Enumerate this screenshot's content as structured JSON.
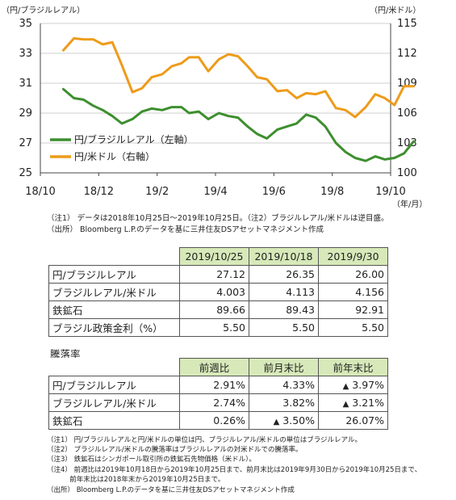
{
  "chart_data": {
    "type": "line",
    "left_axis_unit": "（円/ブラジルレアル）",
    "right_axis_unit": "（円/米ドル）",
    "x_unit": "（年/月）",
    "x_ticks": [
      "18/10",
      "18/12",
      "19/2",
      "19/4",
      "19/6",
      "19/8",
      "19/10"
    ],
    "y_left_ticks": [
      "25",
      "27",
      "29",
      "31",
      "33",
      "35"
    ],
    "y_right_ticks": [
      "100",
      "103",
      "106",
      "109",
      "112",
      "115"
    ],
    "y_left_range": [
      25,
      35
    ],
    "y_right_range": [
      100,
      115
    ],
    "series": [
      {
        "name": "円/ブラジルレアル（左軸）",
        "axis": "left",
        "color": "#3d8f2e",
        "x": [
          "2018-10-25",
          "2018-11-05",
          "2018-11-15",
          "2018-11-25",
          "2018-12-05",
          "2018-12-15",
          "2018-12-25",
          "2019-01-05",
          "2019-01-15",
          "2019-01-25",
          "2019-02-05",
          "2019-02-15",
          "2019-02-25",
          "2019-03-05",
          "2019-03-15",
          "2019-03-25",
          "2019-04-05",
          "2019-04-15",
          "2019-04-25",
          "2019-05-05",
          "2019-05-15",
          "2019-05-25",
          "2019-06-05",
          "2019-06-15",
          "2019-06-25",
          "2019-07-05",
          "2019-07-15",
          "2019-07-25",
          "2019-08-05",
          "2019-08-15",
          "2019-08-25",
          "2019-09-05",
          "2019-09-15",
          "2019-09-25",
          "2019-10-05",
          "2019-10-15",
          "2019-10-25"
        ],
        "y": [
          30.6,
          30.0,
          29.9,
          29.5,
          29.2,
          28.8,
          28.3,
          28.6,
          29.1,
          29.3,
          29.2,
          29.4,
          29.4,
          29.0,
          29.1,
          28.6,
          29.0,
          28.8,
          28.7,
          28.1,
          27.6,
          27.3,
          27.9,
          28.1,
          28.3,
          28.9,
          28.7,
          28.1,
          27.0,
          26.4,
          26.0,
          25.8,
          26.1,
          25.9,
          26.0,
          26.3,
          27.1
        ]
      },
      {
        "name": "円/米ドル（右軸）",
        "axis": "right",
        "color": "#ee9b1a",
        "x": [
          "2018-10-25",
          "2018-11-05",
          "2018-11-15",
          "2018-11-25",
          "2018-12-05",
          "2018-12-15",
          "2018-12-25",
          "2019-01-05",
          "2019-01-15",
          "2019-01-25",
          "2019-02-05",
          "2019-02-15",
          "2019-02-25",
          "2019-03-05",
          "2019-03-15",
          "2019-03-25",
          "2019-04-05",
          "2019-04-15",
          "2019-04-25",
          "2019-05-05",
          "2019-05-15",
          "2019-05-25",
          "2019-06-05",
          "2019-06-15",
          "2019-06-25",
          "2019-07-05",
          "2019-07-15",
          "2019-07-25",
          "2019-08-05",
          "2019-08-15",
          "2019-08-25",
          "2019-09-05",
          "2019-09-15",
          "2019-09-25",
          "2019-10-05",
          "2019-10-15",
          "2019-10-25"
        ],
        "y": [
          112.3,
          113.5,
          113.4,
          113.4,
          112.9,
          113.1,
          110.8,
          108.1,
          108.5,
          109.6,
          109.9,
          110.7,
          111.0,
          111.6,
          111.6,
          110.2,
          111.4,
          111.9,
          111.7,
          110.7,
          109.6,
          109.4,
          108.2,
          108.3,
          107.5,
          108.0,
          107.9,
          108.2,
          106.5,
          106.3,
          105.6,
          106.6,
          107.9,
          107.5,
          106.8,
          108.7,
          108.7
        ]
      }
    ]
  },
  "notes_chart": [
    "（注1） データは2018年10月25日～2019年10月25日。（注2）ブラジルレアル/米ドルは逆目盛。",
    "（出所） Bloomberg L.P.のデータを基に三井住友DSアセットマネジメント作成"
  ],
  "table1": {
    "headers": [
      "2019/10/25",
      "2019/10/18",
      "2019/9/30"
    ],
    "rows": [
      {
        "label": "円/ブラジルレアル",
        "v1": "27.12",
        "v2": "26.35",
        "v3": "26.00"
      },
      {
        "label": "ブラジルレアル/米ドル",
        "v1": "4.003",
        "v2": "4.113",
        "v3": "4.156"
      },
      {
        "label": "鉄鉱石",
        "v1": "89.66",
        "v2": "89.43",
        "v3": "92.91"
      },
      {
        "label": "ブラジル政策金利（%）",
        "v1": "5.50",
        "v2": "5.50",
        "v3": "5.50"
      }
    ]
  },
  "section_label": "騰落率",
  "table2": {
    "headers": [
      "前週比",
      "前月末比",
      "前年末比"
    ],
    "rows": [
      {
        "label": "円/ブラジルレアル",
        "v1": "2.91%",
        "v1_mark": "",
        "v2": "4.33%",
        "v2_mark": "",
        "v3": "3.97%",
        "v3_mark": "▲"
      },
      {
        "label": "ブラジルレアル/米ドル",
        "v1": "2.74%",
        "v1_mark": "",
        "v2": "3.82%",
        "v2_mark": "",
        "v3": "3.21%",
        "v3_mark": "▲"
      },
      {
        "label": "鉄鉱石",
        "v1": "0.26%",
        "v1_mark": "",
        "v2": "3.50%",
        "v2_mark": "▲",
        "v3": "26.07%",
        "v3_mark": ""
      }
    ]
  },
  "notes_bottom": [
    "（注1） 円/ブラジルレアルと円/米ドルの単位は円、ブラジルレアル/米ドルの単位はブラジルレアル。",
    "（注2） ブラジルレアル/米ドルの騰落率はブラジルレアルの対米ドルでの騰落率。",
    "（注3） 鉄鉱石はシンガポール取引所の鉄鉱石先物価格（米ドル）。",
    "（注4） 前週比は2019年10月18日から2019年10月25日まで、前月末比は2019年9月30日から2019年10月25日まで、",
    "　　　 前年末比は2018年末から2019年10月25日まで。",
    "（出所） Bloomberg L.P.のデータを基に三井住友DSアセットマネジメント作成"
  ]
}
